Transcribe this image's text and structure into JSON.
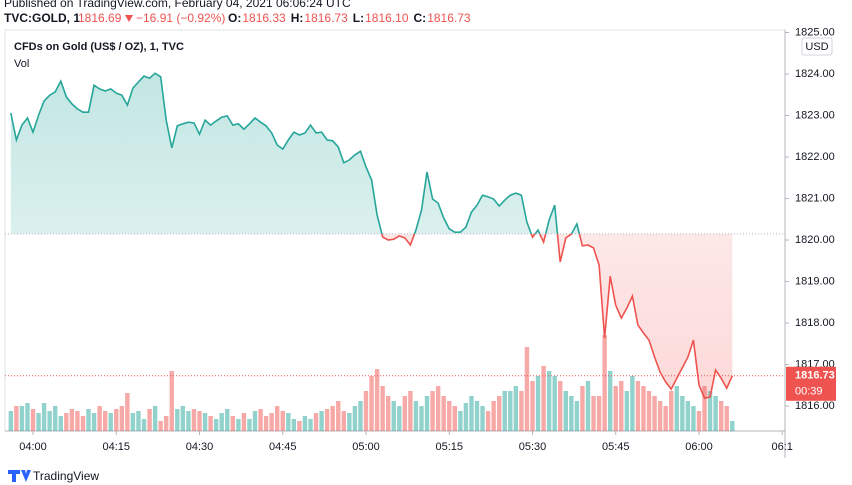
{
  "header": {
    "published": "Published on TradingView.com, February 04, 2021 06:06:24 UTC",
    "symbol": "TVC:GOLD, 1",
    "last": "1816.69",
    "change": "−16.91 (−0.92%)",
    "ohlc": [
      {
        "label": "O:",
        "value": "1816.33"
      },
      {
        "label": "H:",
        "value": "1816.73"
      },
      {
        "label": "L:",
        "value": "1816.10"
      },
      {
        "label": "C:",
        "value": "1816.73"
      }
    ]
  },
  "chart_data": {
    "type": "line",
    "title": "CFDs on Gold (US$ / OZ), 1, TVC",
    "volume_label": "Vol",
    "currency": "USD",
    "countdown": "00:39",
    "x": [
      -4,
      -3,
      -2,
      -1,
      0,
      1,
      2,
      3,
      4,
      5,
      6,
      7,
      8,
      9,
      10,
      11,
      12,
      13,
      14,
      15,
      16,
      17,
      18,
      19,
      20,
      21,
      22,
      23,
      24,
      25,
      26,
      27,
      28,
      29,
      30,
      31,
      32,
      33,
      34,
      35,
      36,
      37,
      38,
      39,
      40,
      41,
      42,
      43,
      44,
      45,
      46,
      47,
      48,
      49,
      50,
      51,
      52,
      53,
      54,
      55,
      56,
      57,
      58,
      59,
      60,
      61,
      62,
      63,
      64,
      65,
      66,
      67,
      68,
      69,
      70,
      71,
      72,
      73,
      74,
      75,
      76,
      77,
      78,
      79,
      80,
      81,
      82,
      83,
      84,
      85,
      86,
      87,
      88,
      89,
      90,
      91,
      92,
      93,
      94,
      95,
      96,
      97,
      98,
      99,
      100,
      101,
      102,
      103,
      104,
      105,
      106,
      107,
      108,
      109,
      110,
      111,
      112,
      113,
      114,
      115,
      116,
      117,
      118,
      119,
      120,
      121,
      122,
      123,
      124,
      125,
      126
    ],
    "series": [
      {
        "color_up": "#26a69a",
        "color_down": "#ef5350",
        "volume_up_color": "rgba(38,166,154,0.5)",
        "volume_down_color": "rgba(239,83,80,0.5)",
        "values": [
          1823.06,
          1822.41,
          1822.77,
          1822.94,
          1822.6,
          1823.01,
          1823.35,
          1823.49,
          1823.57,
          1823.83,
          1823.45,
          1823.28,
          1823.16,
          1823.08,
          1823.08,
          1823.73,
          1823.64,
          1823.59,
          1823.64,
          1823.54,
          1823.49,
          1823.25,
          1823.66,
          1823.81,
          1823.95,
          1823.9,
          1824.02,
          1823.93,
          1822.89,
          1822.22,
          1822.75,
          1822.8,
          1822.84,
          1822.82,
          1822.55,
          1822.89,
          1822.77,
          1822.87,
          1822.96,
          1822.99,
          1822.77,
          1822.8,
          1822.67,
          1822.8,
          1822.94,
          1822.84,
          1822.75,
          1822.58,
          1822.29,
          1822.19,
          1822.41,
          1822.6,
          1822.53,
          1822.58,
          1822.77,
          1822.58,
          1822.6,
          1822.41,
          1822.39,
          1822.24,
          1821.86,
          1821.93,
          1822.05,
          1822.14,
          1821.76,
          1821.45,
          1820.6,
          1820.07,
          1820.0,
          1820.02,
          1820.1,
          1820.05,
          1819.88,
          1820.24,
          1820.72,
          1821.64,
          1820.99,
          1820.89,
          1820.53,
          1820.27,
          1820.19,
          1820.19,
          1820.31,
          1820.67,
          1820.84,
          1821.08,
          1821.04,
          1820.99,
          1820.82,
          1820.96,
          1821.08,
          1821.13,
          1821.08,
          1820.43,
          1820.07,
          1820.24,
          1819.95,
          1820.48,
          1820.84,
          1819.47,
          1820.05,
          1820.14,
          1820.39,
          1819.86,
          1819.88,
          1819.81,
          1819.4,
          1817.64,
          1819.13,
          1818.43,
          1818.12,
          1818.36,
          1818.65,
          1817.95,
          1817.76,
          1817.59,
          1817.18,
          1816.82,
          1816.58,
          1816.41,
          1816.67,
          1816.92,
          1817.18,
          1817.59,
          1816.51,
          1816.19,
          1816.22,
          1816.87,
          1816.67,
          1816.43,
          1816.73
        ],
        "volume": [
          20,
          25,
          25,
          28,
          22,
          18,
          28,
          20,
          25,
          15,
          18,
          22,
          20,
          15,
          22,
          18,
          25,
          20,
          18,
          22,
          25,
          38,
          18,
          20,
          12,
          22,
          25,
          10,
          15,
          60,
          22,
          25,
          20,
          22,
          20,
          18,
          15,
          12,
          18,
          22,
          15,
          12,
          18,
          12,
          20,
          22,
          15,
          18,
          25,
          20,
          18,
          12,
          10,
          15,
          12,
          18,
          20,
          22,
          25,
          30,
          20,
          18,
          25,
          30,
          40,
          55,
          62,
          45,
          35,
          30,
          25,
          35,
          40,
          30,
          25,
          35,
          40,
          45,
          35,
          30,
          25,
          20,
          28,
          35,
          30,
          25,
          20,
          30,
          35,
          40,
          40,
          45,
          40,
          84,
          50,
          55,
          65,
          60,
          55,
          50,
          40,
          35,
          30,
          45,
          50,
          35,
          35,
          96,
          60,
          45,
          50,
          40,
          55,
          50,
          45,
          40,
          35,
          30,
          25,
          40,
          45,
          35,
          30,
          25,
          20,
          45,
          40,
          35,
          30,
          25,
          10
        ]
      }
    ],
    "baseline": 1820.15,
    "xlim": [
      -5.05,
      135.5
    ],
    "ylim": [
      1815.4,
      1825.06
    ],
    "xticks": [
      {
        "value": 0,
        "label": "04:00"
      },
      {
        "value": 15,
        "label": "04:15"
      },
      {
        "value": 30,
        "label": "04:30"
      },
      {
        "value": 45,
        "label": "04:45"
      },
      {
        "value": 60,
        "label": "05:00"
      },
      {
        "value": 75,
        "label": "05:15"
      },
      {
        "value": 90,
        "label": "05:30"
      },
      {
        "value": 105,
        "label": "05:45"
      },
      {
        "value": 120,
        "label": "06:00"
      },
      {
        "value": 135,
        "label": "06:1"
      }
    ],
    "yticks": [
      {
        "value": 1825,
        "label": "1825.00"
      },
      {
        "value": 1824,
        "label": "1824.00"
      },
      {
        "value": 1823,
        "label": "1823.00"
      },
      {
        "value": 1822,
        "label": "1822.00"
      },
      {
        "value": 1821,
        "label": "1821.00"
      },
      {
        "value": 1820,
        "label": "1820.00"
      },
      {
        "value": 1819,
        "label": "1819.00"
      },
      {
        "value": 1818,
        "label": "1818.00"
      },
      {
        "value": 1817,
        "label": "1817.00"
      },
      {
        "value": 1816,
        "label": "1816.00"
      }
    ],
    "grid": false
  },
  "footer": {
    "brand": "TradingView"
  }
}
